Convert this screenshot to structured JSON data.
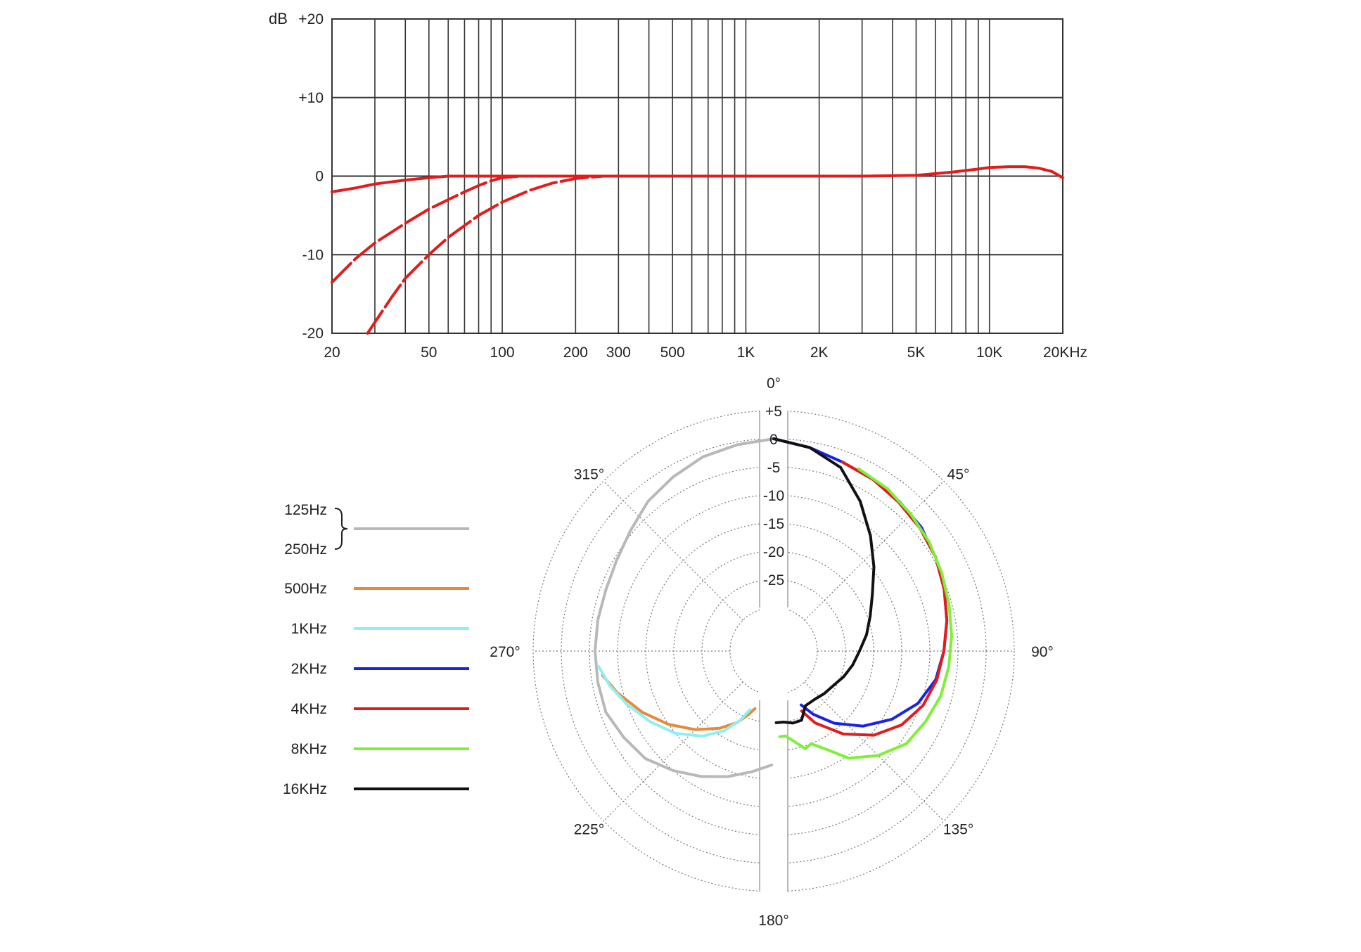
{
  "chart_data": [
    {
      "type": "line",
      "title": "",
      "ylabel": "dB",
      "xlabel": "",
      "x_scale": "log",
      "xlim": [
        20,
        20000
      ],
      "ylim": [
        -20,
        20
      ],
      "y_ticks": [
        "+20",
        "+10",
        "0",
        "-10",
        "-20"
      ],
      "x_tick_values": [
        20,
        50,
        100,
        200,
        300,
        500,
        1000,
        2000,
        5000,
        10000,
        20000
      ],
      "x_tick_labels": [
        "20",
        "50",
        "100",
        "200",
        "300",
        "500",
        "1K",
        "2K",
        "5K",
        "10K",
        "20KHz"
      ],
      "color": "#e31b1b",
      "grid": true,
      "series": [
        {
          "style": "solid",
          "points": [
            [
              20,
              -2.0
            ],
            [
              25,
              -1.5
            ],
            [
              30,
              -1.0
            ],
            [
              40,
              -0.5
            ],
            [
              50,
              -0.2
            ],
            [
              60,
              0
            ],
            [
              200,
              0
            ],
            [
              1000,
              0
            ],
            [
              3000,
              0
            ],
            [
              5000,
              0.1
            ],
            [
              7000,
              0.5
            ],
            [
              9000,
              0.9
            ],
            [
              10000,
              1.1
            ],
            [
              12000,
              1.2
            ],
            [
              14000,
              1.2
            ],
            [
              16000,
              1.0
            ],
            [
              18000,
              0.6
            ],
            [
              20000,
              -0.2
            ]
          ]
        },
        {
          "style": "dashed",
          "points": [
            [
              20,
              -13.5
            ],
            [
              25,
              -10.5
            ],
            [
              30,
              -8.5
            ],
            [
              40,
              -6.0
            ],
            [
              50,
              -4.2
            ],
            [
              60,
              -3.0
            ],
            [
              70,
              -2.0
            ],
            [
              80,
              -1.2
            ],
            [
              90,
              -0.6
            ],
            [
              100,
              -0.2
            ],
            [
              120,
              0
            ]
          ]
        },
        {
          "style": "dashed",
          "points": [
            [
              28,
              -20.0
            ],
            [
              35,
              -15.5
            ],
            [
              40,
              -13.0
            ],
            [
              50,
              -10.0
            ],
            [
              60,
              -7.8
            ],
            [
              70,
              -6.3
            ],
            [
              80,
              -5.0
            ],
            [
              100,
              -3.3
            ],
            [
              130,
              -1.8
            ],
            [
              160,
              -0.9
            ],
            [
              200,
              -0.3
            ],
            [
              260,
              0
            ]
          ]
        }
      ]
    },
    {
      "type": "polar",
      "title": "",
      "angle_labels": [
        "0°",
        "45°",
        "90°",
        "135°",
        "180°",
        "225°",
        "270°",
        "315°"
      ],
      "radial_ticks": [
        "+5",
        "0",
        "-5",
        "-10",
        "-15",
        "-20",
        "-25"
      ],
      "radial_range_db": [
        -30,
        5
      ],
      "legend": [
        {
          "labels": [
            "125Hz",
            "250Hz"
          ],
          "color": "#b8b8b8",
          "brace": true
        },
        {
          "labels": [
            "500Hz"
          ],
          "color": "#e8883a"
        },
        {
          "labels": [
            "1KHz"
          ],
          "color": "#8ef0f0"
        },
        {
          "labels": [
            "2KHz"
          ],
          "color": "#1b22e8"
        },
        {
          "labels": [
            "4KHz"
          ],
          "color": "#e31b1b"
        },
        {
          "labels": [
            "8KHz"
          ],
          "color": "#7ef03a"
        },
        {
          "labels": [
            "16KHz"
          ],
          "color": "#111111"
        }
      ],
      "series": [
        {
          "name": "125Hz / 250Hz",
          "color": "#b8b8b8",
          "points": [
            [
              360,
              0
            ],
            [
              350,
              -0.5
            ],
            [
              340,
              -1
            ],
            [
              330,
              -2
            ],
            [
              320,
              -3
            ],
            [
              310,
              -4.5
            ],
            [
              300,
              -5.5
            ],
            [
              290,
              -6
            ],
            [
              280,
              -6
            ],
            [
              270,
              -6
            ],
            [
              260,
              -6
            ],
            [
              250,
              -6
            ],
            [
              240,
              -7
            ],
            [
              230,
              -8
            ],
            [
              220,
              -10
            ],
            [
              210,
              -12
            ],
            [
              200,
              -14
            ],
            [
              190,
              -16
            ],
            [
              181,
              -17.5
            ]
          ]
        },
        {
          "name": "500Hz",
          "color": "#e8883a",
          "points": [
            [
              262,
              -7
            ],
            [
              255,
              -9
            ],
            [
              245,
              -12
            ],
            [
              235,
              -15
            ],
            [
              225,
              -18
            ],
            [
              215,
              -21
            ],
            [
              207,
              -23.5
            ],
            [
              202,
              -25.5
            ],
            [
              198,
              -27
            ]
          ]
        },
        {
          "name": "1KHz",
          "color": "#8ef0f0",
          "points": [
            [
              265,
              -6.5
            ],
            [
              258,
              -8
            ],
            [
              250,
              -10
            ],
            [
              240,
              -12.5
            ],
            [
              230,
              -15
            ],
            [
              220,
              -18
            ],
            [
              212,
              -21
            ],
            [
              206,
              -24
            ],
            [
              202,
              -26.5
            ]
          ]
        },
        {
          "name": "2KHz",
          "color": "#1b22e8",
          "points": [
            [
              0,
              0
            ],
            [
              10,
              -1
            ],
            [
              20,
              -2
            ],
            [
              30,
              -2.5
            ],
            [
              40,
              -3
            ],
            [
              50,
              -3.5
            ],
            [
              60,
              -4.5
            ],
            [
              70,
              -5.5
            ],
            [
              80,
              -6.5
            ],
            [
              90,
              -7.5
            ],
            [
              100,
              -8.5
            ],
            [
              110,
              -10.5
            ],
            [
              120,
              -13.5
            ],
            [
              130,
              -17
            ],
            [
              140,
              -21
            ],
            [
              148,
              -24.5
            ],
            [
              153,
              -27
            ]
          ]
        },
        {
          "name": "4KHz",
          "color": "#e31b1b",
          "points": [
            [
              20,
              -2
            ],
            [
              30,
              -2.5
            ],
            [
              40,
              -3.2
            ],
            [
              50,
              -3.8
            ],
            [
              60,
              -4.5
            ],
            [
              70,
              -5.5
            ],
            [
              80,
              -6.5
            ],
            [
              90,
              -7.5
            ],
            [
              100,
              -8.3
            ],
            [
              110,
              -9.5
            ],
            [
              120,
              -11.5
            ],
            [
              130,
              -14.5
            ],
            [
              140,
              -18.5
            ],
            [
              150,
              -23
            ],
            [
              155,
              -26
            ]
          ]
        },
        {
          "name": "8KHz",
          "color": "#7ef03a",
          "points": [
            [
              25,
              -2
            ],
            [
              35,
              -2.5
            ],
            [
              45,
              -3.3
            ],
            [
              55,
              -4
            ],
            [
              65,
              -4.8
            ],
            [
              75,
              -5.5
            ],
            [
              85,
              -6
            ],
            [
              95,
              -6.5
            ],
            [
              105,
              -7
            ],
            [
              115,
              -8
            ],
            [
              125,
              -9
            ],
            [
              135,
              -11.5
            ],
            [
              145,
              -14.5
            ],
            [
              152,
              -18
            ],
            [
              158,
              -20
            ],
            [
              162,
              -19.5
            ],
            [
              168,
              -21.5
            ],
            [
              172,
              -22.5
            ],
            [
              176,
              -22.5
            ]
          ]
        },
        {
          "name": "16KHz",
          "color": "#111111",
          "points": [
            [
              0,
              0
            ],
            [
              10,
              -1
            ],
            [
              20,
              -3
            ],
            [
              30,
              -7
            ],
            [
              40,
              -11
            ],
            [
              50,
              -14.5
            ],
            [
              60,
              -17.5
            ],
            [
              70,
              -19.5
            ],
            [
              80,
              -21
            ],
            [
              90,
              -22.5
            ],
            [
              100,
              -23.5
            ],
            [
              110,
              -24.5
            ],
            [
              120,
              -25.5
            ],
            [
              130,
              -26
            ],
            [
              140,
              -26.5
            ],
            [
              150,
              -26.5
            ],
            [
              158,
              -24.5
            ],
            [
              165,
              -24.5
            ],
            [
              172,
              -25
            ],
            [
              178,
              -25
            ]
          ]
        }
      ]
    }
  ]
}
